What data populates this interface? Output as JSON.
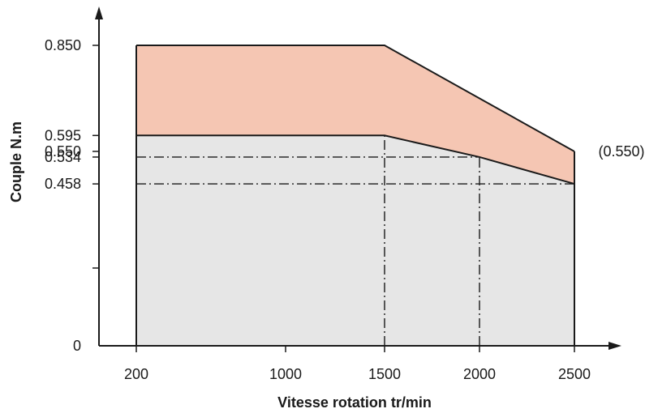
{
  "chart_data": {
    "type": "area",
    "title": "",
    "xlabel": "Vitesse rotation tr/min",
    "ylabel": "Couple N.m",
    "x_ticks": [
      200,
      1000,
      1500,
      2000,
      2500
    ],
    "x_tick_labels": [
      "200",
      "1000",
      "1500",
      "2000",
      "2500"
    ],
    "y_ticks": [
      0,
      0.458,
      0.534,
      0.55,
      0.595,
      0.85
    ],
    "y_tick_labels": [
      "0",
      "0.458",
      "0.534",
      "0.550",
      "0.595",
      "0.850"
    ],
    "ylim": [
      0,
      0.85
    ],
    "grid": false,
    "colors": {
      "upper_fill": "#f5c6b3",
      "lower_fill": "#e6e6e6",
      "line": "#1a1a1a"
    },
    "series": [
      {
        "points": [
          [
            200,
            0.85
          ],
          [
            1500,
            0.85
          ],
          [
            2500,
            0.55
          ]
        ]
      },
      {
        "points": [
          [
            200,
            0.595
          ],
          [
            1500,
            0.595
          ],
          [
            2000,
            0.534
          ],
          [
            2500,
            0.458
          ]
        ]
      }
    ],
    "reference_lines": [
      {
        "orientation": "horizontal",
        "y": 0.534,
        "x_range": [
          200,
          2000
        ]
      },
      {
        "orientation": "horizontal",
        "y": 0.458,
        "x_range": [
          200,
          2500
        ]
      },
      {
        "orientation": "vertical",
        "x": 1500,
        "y_range": [
          0,
          0.595
        ]
      },
      {
        "orientation": "vertical",
        "x": 2000,
        "y_range": [
          0,
          0.534
        ]
      }
    ],
    "annotations": [
      {
        "text": "(0.550)",
        "x": 2500,
        "y": 0.55
      }
    ]
  }
}
